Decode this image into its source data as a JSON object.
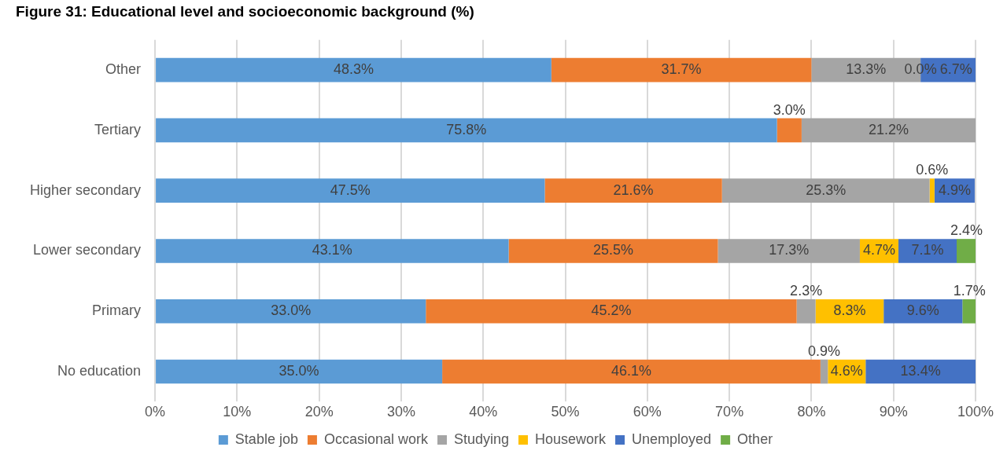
{
  "chart_data": {
    "type": "bar",
    "orientation": "horizontal",
    "stacked": true,
    "title": "Figure 31: Educational level and socioeconomic background (%)",
    "categories": [
      "Other",
      "Tertiary",
      "Higher secondary",
      "Lower secondary",
      "Primary",
      "No education"
    ],
    "series": [
      {
        "name": "Stable job",
        "color": "#5b9bd5",
        "values": [
          48.3,
          75.8,
          47.5,
          43.1,
          33.0,
          35.0
        ],
        "value_labels": [
          "48.3%",
          "75.8%",
          "47.5%",
          "43.1%",
          "33.0%",
          "35.0%"
        ]
      },
      {
        "name": "Occasional work",
        "color": "#ed7d31",
        "values": [
          31.7,
          3.0,
          21.6,
          25.5,
          45.2,
          46.1
        ],
        "value_labels": [
          "31.7%",
          "3.0%",
          "21.6%",
          "25.5%",
          "45.2%",
          "46.1%"
        ]
      },
      {
        "name": "Studying",
        "color": "#a5a5a5",
        "values": [
          13.3,
          21.2,
          25.3,
          17.3,
          2.3,
          0.9
        ],
        "value_labels": [
          "13.3%",
          "21.2%",
          "25.3%",
          "17.3%",
          "2.3%",
          "0.9%"
        ]
      },
      {
        "name": "Housework",
        "color": "#ffc000",
        "values": [
          0.0,
          0,
          0.6,
          4.7,
          8.3,
          4.6
        ],
        "value_labels": [
          "0.0%",
          null,
          "0.6%",
          "4.7%",
          "8.3%",
          "4.6%"
        ]
      },
      {
        "name": "Unemployed",
        "color": "#4472c4",
        "values": [
          6.7,
          0,
          4.9,
          7.1,
          9.6,
          13.4
        ],
        "value_labels": [
          "6.7%",
          null,
          "4.9%",
          "7.1%",
          "9.6%",
          "13.4%"
        ]
      },
      {
        "name": "Other",
        "color": "#70ad47",
        "values": [
          0,
          0,
          0,
          2.4,
          1.7,
          0
        ],
        "value_labels": [
          null,
          null,
          null,
          "2.4%",
          "1.7%",
          null
        ]
      }
    ],
    "xlim": [
      0,
      100
    ],
    "xticks": [
      {
        "value": 0,
        "label": "0%"
      },
      {
        "value": 10,
        "label": "10%"
      },
      {
        "value": 20,
        "label": "20%"
      },
      {
        "value": 30,
        "label": "30%"
      },
      {
        "value": 40,
        "label": "40%"
      },
      {
        "value": 50,
        "label": "50%"
      },
      {
        "value": 60,
        "label": "60%"
      },
      {
        "value": 70,
        "label": "70%"
      },
      {
        "value": 80,
        "label": "80%"
      },
      {
        "value": 90,
        "label": "90%"
      },
      {
        "value": 100,
        "label": "100%"
      }
    ],
    "grid": "x",
    "legend": "bottom"
  }
}
